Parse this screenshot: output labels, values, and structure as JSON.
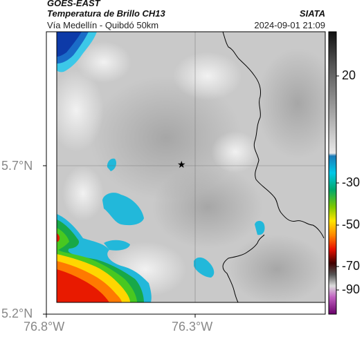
{
  "header": {
    "source": "GOES-EAST",
    "product": "Temperatura de Brillo CH13",
    "organization": "SIATA",
    "location": "Vía Medellín - Quibdó 50km",
    "datetime": "2024-09-01 21:09"
  },
  "axes": {
    "lat_ticks": [
      "5.7°N",
      "5.2°N"
    ],
    "lon_ticks": [
      "76.8°W",
      "76.3°W"
    ]
  },
  "colorbar": {
    "ticks": [
      "20",
      "-30",
      "-50",
      "-70",
      "-90"
    ],
    "colors": [
      "#111111",
      "#6e6e6e",
      "#cfcfcf",
      "#00bcd4",
      "#1565c0",
      "#00c853",
      "#ffeb3b",
      "#ff6d00",
      "#d50000",
      "#5a0000",
      "#ffffff",
      "#9c27b0"
    ]
  },
  "marker": {
    "name": "star-marker",
    "symbol": "★"
  },
  "colors": {
    "cold_cloud": "#1fb6d8",
    "deep_cold": "#1040b0",
    "land": "#c8c8c8",
    "border": "#000000"
  }
}
